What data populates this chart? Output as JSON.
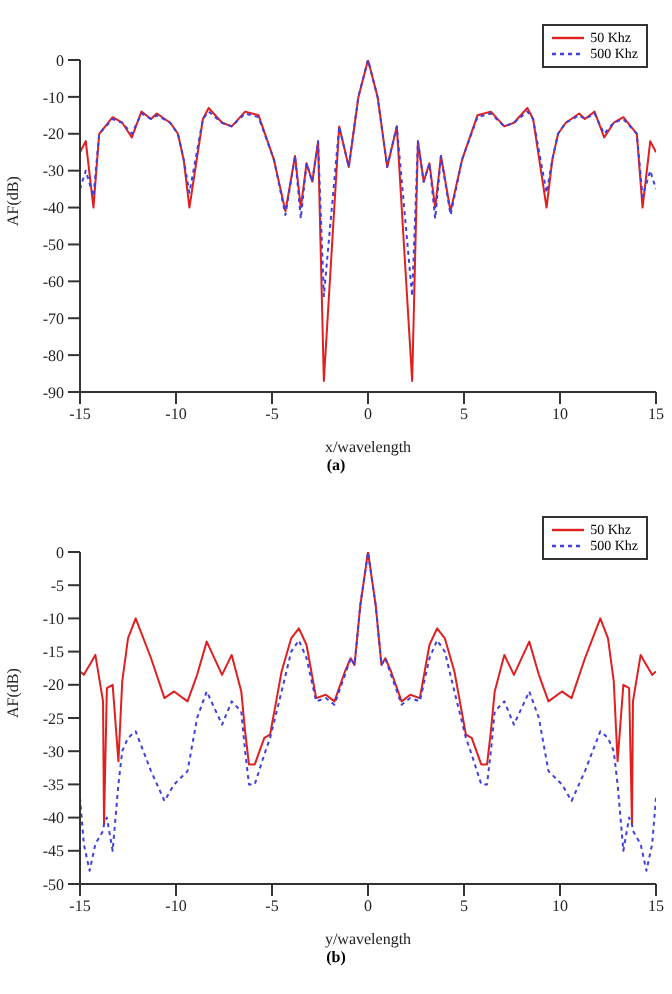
{
  "chart_data": [
    {
      "type": "line",
      "xlabel": "x/wavelength",
      "ylabel": "AF(dB)",
      "annotations": [
        "(a)"
      ],
      "xlim": [
        -15,
        15
      ],
      "xticks": [
        -15,
        -10,
        -5,
        0,
        5,
        10,
        15
      ],
      "ylim": [
        -90,
        0
      ],
      "yticks": [
        -90,
        -80,
        -70,
        -60,
        -50,
        -40,
        -30,
        -20,
        -10,
        0
      ],
      "legend": "top right",
      "marker": "none",
      "x": [
        -15,
        -14.7,
        -14.3,
        -14,
        -13.3,
        -12.8,
        -12.3,
        -11.8,
        -11.3,
        -11,
        -10.3,
        -9.9,
        -9.6,
        -9.3,
        -8.6,
        -8.3,
        -7.6,
        -7.1,
        -6.4,
        -5.7,
        -4.9,
        -4.3,
        -3.8,
        -3.5,
        -3.2,
        -2.9,
        -2.6,
        -2.3,
        -1.5,
        -1,
        -0.5,
        0,
        0.5,
        1,
        1.5,
        2.3,
        2.6,
        2.9,
        3.2,
        3.5,
        3.8,
        4.3,
        4.9,
        5.7,
        6.4,
        7.1,
        7.6,
        8.3,
        8.6,
        9.3,
        9.6,
        9.9,
        10.3,
        11,
        11.3,
        11.8,
        12.3,
        12.8,
        13.3,
        14,
        14.3,
        14.7,
        15
      ],
      "series": [
        {
          "name": "50 Khz",
          "color": "#e02020",
          "line_style": "solid",
          "values": [
            -25,
            -22,
            -40,
            -20,
            -15.5,
            -17,
            -21,
            -14,
            -16,
            -14.5,
            -17,
            -20,
            -27,
            -40,
            -16,
            -13,
            -17,
            -18,
            -14,
            -15,
            -27,
            -41,
            -26,
            -40,
            -28,
            -33,
            -22,
            -87,
            -18,
            -29,
            -10,
            0,
            -10,
            -29,
            -18,
            -87,
            -22,
            -33,
            -28,
            -40,
            -26,
            -41,
            -27,
            -15,
            -14,
            -18,
            -17,
            -13,
            -16,
            -40,
            -27,
            -20,
            -17,
            -14.5,
            -16,
            -14,
            -21,
            -17,
            -15.5,
            -20,
            -40,
            -22,
            -25
          ]
        },
        {
          "name": "500 Khz",
          "color": "#4040e0",
          "line_style": "dotted",
          "values": [
            -35,
            -30,
            -37,
            -20,
            -16,
            -17,
            -20,
            -14.5,
            -16,
            -15,
            -17,
            -20,
            -27,
            -36,
            -16,
            -14,
            -17,
            -18,
            -14.5,
            -15.5,
            -27,
            -42,
            -26,
            -43,
            -28,
            -33,
            -22,
            -64,
            -18,
            -29,
            -10,
            0,
            -10,
            -29,
            -18,
            -64,
            -22,
            -33,
            -28,
            -43,
            -26,
            -42,
            -27,
            -15.5,
            -14.5,
            -18,
            -17,
            -14,
            -16,
            -36,
            -27,
            -20,
            -17,
            -15,
            -16,
            -14.5,
            -20,
            -17,
            -16,
            -20,
            -37,
            -30,
            -35
          ]
        }
      ]
    },
    {
      "type": "line",
      "xlabel": "y/wavelength",
      "ylabel": "AF(dB)",
      "annotations": [
        "(b)"
      ],
      "xlim": [
        -15,
        15
      ],
      "xticks": [
        -15,
        -10,
        -5,
        0,
        5,
        10,
        15
      ],
      "ylim": [
        -50,
        0
      ],
      "yticks": [
        -50,
        -45,
        -40,
        -35,
        -30,
        -25,
        -20,
        -15,
        -10,
        -5,
        0
      ],
      "legend": "top right",
      "marker": "none",
      "x": [
        -15,
        -14.8,
        -14.5,
        -14.2,
        -13.8,
        -13.75,
        -13.6,
        -13.3,
        -13,
        -12.8,
        -12.5,
        -12.1,
        -11.3,
        -10.6,
        -10.1,
        -9.4,
        -8.9,
        -8.4,
        -7.6,
        -7.1,
        -6.6,
        -6.4,
        -6.2,
        -5.9,
        -5.4,
        -5.1,
        -4.5,
        -4,
        -3.6,
        -3.2,
        -2.7,
        -2.2,
        -1.75,
        -1.2,
        -0.9,
        -0.7,
        -0.4,
        0,
        0.4,
        0.7,
        0.9,
        1.2,
        1.75,
        2.2,
        2.7,
        3.2,
        3.6,
        4,
        4.5,
        5.1,
        5.4,
        5.9,
        6.2,
        6.4,
        6.6,
        7.1,
        7.6,
        8.4,
        8.9,
        9.4,
        10.1,
        10.6,
        11.3,
        12.1,
        12.5,
        12.8,
        13,
        13.3,
        13.6,
        13.75,
        13.8,
        14.2,
        14.5,
        14.8,
        15
      ],
      "series": [
        {
          "name": "50 Khz",
          "color": "#e02020",
          "line_style": "solid",
          "values": [
            -18,
            -18.5,
            -17,
            -15.5,
            -22.5,
            -41,
            -20.5,
            -20,
            -31.5,
            -19.5,
            -13,
            -10,
            -16,
            -22,
            -21,
            -22.5,
            -18.5,
            -13.5,
            -18.5,
            -15.5,
            -21,
            -27,
            -32,
            -32,
            -28,
            -27.5,
            -18,
            -13,
            -11.5,
            -14,
            -22,
            -21.5,
            -22.5,
            -18,
            -16,
            -17,
            -8,
            0,
            -8,
            -17,
            -16,
            -18,
            -22.5,
            -21.5,
            -22,
            -14,
            -11.5,
            -13,
            -18,
            -27.5,
            -28,
            -32,
            -32,
            -27,
            -21,
            -15.5,
            -18.5,
            -13.5,
            -18.5,
            -22.5,
            -21,
            -22,
            -16,
            -10,
            -13,
            -19.5,
            -31.5,
            -20,
            -20.5,
            -41,
            -22.5,
            -15.5,
            -17,
            -18.5,
            -18
          ]
        },
        {
          "name": "500 Khz",
          "color": "#4040e0",
          "line_style": "dotted",
          "values": [
            -37,
            -44,
            -48,
            -44,
            -42,
            -41,
            -40,
            -45,
            -35,
            -30,
            -28,
            -27,
            -33,
            -37.5,
            -35,
            -33,
            -25,
            -21,
            -26,
            -22.5,
            -24,
            -30,
            -35,
            -35,
            -30.5,
            -28,
            -21,
            -15,
            -13.3,
            -16,
            -22.5,
            -22,
            -23,
            -18.5,
            -16,
            -17,
            -8,
            0,
            -8,
            -17,
            -16,
            -18.5,
            -23,
            -22,
            -22.5,
            -16,
            -13.3,
            -15,
            -21,
            -28,
            -30.5,
            -35,
            -35,
            -30,
            -24,
            -22.5,
            -26,
            -21,
            -25,
            -33,
            -35,
            -37.5,
            -33,
            -27,
            -28,
            -30,
            -35,
            -45,
            -40,
            -41,
            -42,
            -44,
            -48,
            -44,
            -37
          ]
        }
      ]
    }
  ]
}
